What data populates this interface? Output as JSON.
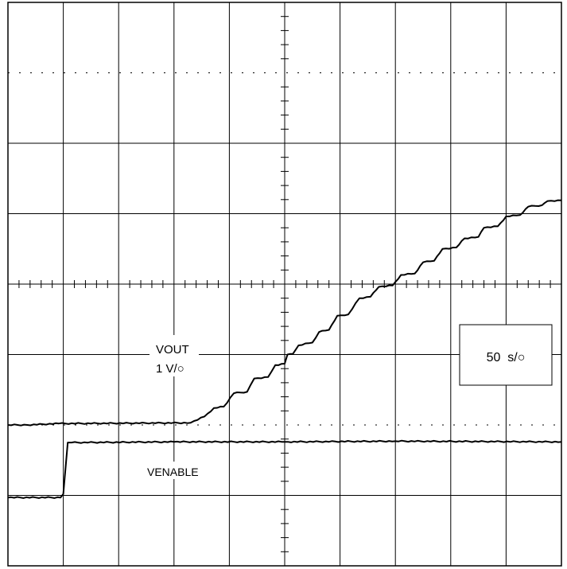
{
  "chart_data": {
    "type": "line",
    "title": "",
    "xlabel": "",
    "ylabel": "",
    "grid": true,
    "grid_divisions": {
      "x": 10,
      "y": 8
    },
    "xlim": [
      0,
      10
    ],
    "ylim": [
      0,
      8
    ],
    "series": [
      {
        "name": "VOUT",
        "color": "#000000",
        "points": [
          [
            0,
            2.0
          ],
          [
            0.35,
            2.0
          ],
          [
            0.92,
            2.02
          ],
          [
            3.3,
            2.03
          ],
          [
            3.55,
            2.12
          ],
          [
            3.72,
            2.24
          ],
          [
            3.9,
            2.26
          ],
          [
            4.08,
            2.45
          ],
          [
            4.32,
            2.47
          ],
          [
            4.45,
            2.66
          ],
          [
            4.7,
            2.68
          ],
          [
            4.83,
            2.85
          ],
          [
            5.0,
            2.87
          ],
          [
            5.05,
            3.0
          ],
          [
            5.15,
            3.01
          ],
          [
            5.25,
            3.13
          ],
          [
            5.5,
            3.17
          ],
          [
            5.62,
            3.32
          ],
          [
            5.8,
            3.35
          ],
          [
            5.95,
            3.55
          ],
          [
            6.15,
            3.57
          ],
          [
            6.35,
            3.8
          ],
          [
            6.55,
            3.82
          ],
          [
            6.7,
            3.96
          ],
          [
            6.95,
            3.98
          ],
          [
            7.1,
            4.13
          ],
          [
            7.35,
            4.15
          ],
          [
            7.5,
            4.31
          ],
          [
            7.7,
            4.33
          ],
          [
            7.85,
            4.5
          ],
          [
            8.1,
            4.52
          ],
          [
            8.25,
            4.65
          ],
          [
            8.5,
            4.67
          ],
          [
            8.6,
            4.8
          ],
          [
            8.85,
            4.82
          ],
          [
            9.0,
            4.96
          ],
          [
            9.25,
            4.98
          ],
          [
            9.4,
            5.1
          ],
          [
            9.65,
            5.12
          ],
          [
            9.75,
            5.18
          ],
          [
            10,
            5.19
          ]
        ]
      },
      {
        "name": "VENABLE",
        "color": "#000000",
        "points": [
          [
            0,
            0.97
          ],
          [
            0.95,
            0.97
          ],
          [
            1.0,
            1.02
          ],
          [
            1.08,
            1.75
          ],
          [
            1.15,
            1.75
          ],
          [
            3,
            1.76
          ],
          [
            5,
            1.76
          ],
          [
            7,
            1.77
          ],
          [
            10,
            1.76
          ]
        ]
      }
    ],
    "annotations": {
      "vout_name": "VOUT",
      "vout_scale": "1 V/○",
      "venable_name": "VENABLE",
      "timebase": "50  s/○"
    }
  }
}
